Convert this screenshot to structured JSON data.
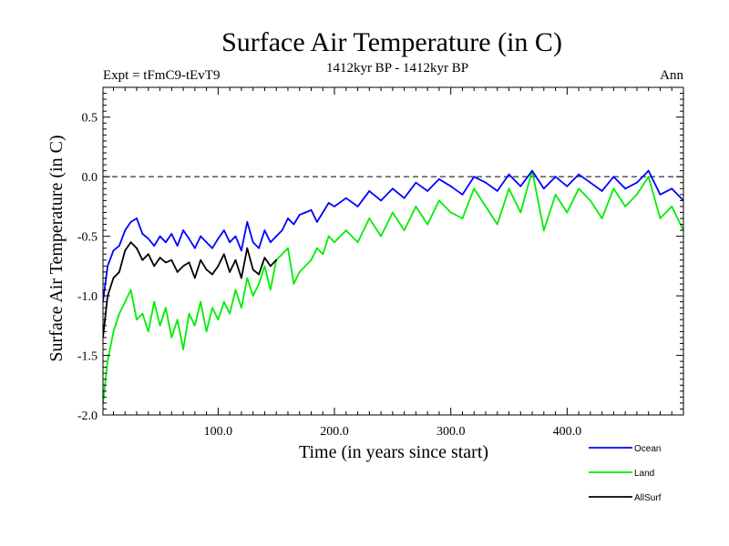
{
  "chart_data": {
    "type": "line",
    "title": "Surface Air Temperature (in C)",
    "subtitle": "1412kyr BP - 1412kyr BP",
    "expt_label": "Expt = tFmC9-tEvT9",
    "season_label": "Ann",
    "xlabel": "Time (in years since start)",
    "ylabel": "Surface Air Temperature (in C)",
    "xlim": [
      1,
      500
    ],
    "ylim": [
      -2.0,
      0.75
    ],
    "x_ticks": [
      100,
      200,
      300,
      400
    ],
    "x_tick_labels": [
      "100.0",
      "200.0",
      "300.0",
      "400.0"
    ],
    "y_ticks": [
      -2.0,
      -1.5,
      -1.0,
      -0.5,
      0.0,
      0.5
    ],
    "y_tick_labels": [
      "-2.0",
      "-1.5",
      "-1.0",
      "-0.5",
      "0.0",
      "0.5"
    ],
    "reference_line": 0.0,
    "grid": false,
    "legend_position": "bottom-right",
    "series": [
      {
        "name": "Ocean",
        "color": "#0000ff",
        "x": [
          1,
          5,
          10,
          15,
          20,
          25,
          30,
          35,
          40,
          45,
          50,
          55,
          60,
          65,
          70,
          75,
          80,
          85,
          90,
          95,
          100,
          105,
          110,
          115,
          120,
          125,
          130,
          135,
          140,
          145,
          150,
          155,
          160,
          165,
          170,
          175,
          180,
          185,
          190,
          195,
          200,
          210,
          220,
          230,
          240,
          250,
          260,
          270,
          280,
          290,
          300,
          310,
          320,
          330,
          340,
          350,
          360,
          370,
          380,
          390,
          400,
          410,
          420,
          430,
          440,
          450,
          460,
          470,
          480,
          490,
          500
        ],
        "values": [
          -1.05,
          -0.75,
          -0.62,
          -0.58,
          -0.45,
          -0.38,
          -0.35,
          -0.48,
          -0.52,
          -0.58,
          -0.5,
          -0.55,
          -0.48,
          -0.58,
          -0.45,
          -0.52,
          -0.6,
          -0.5,
          -0.55,
          -0.6,
          -0.52,
          -0.45,
          -0.55,
          -0.5,
          -0.62,
          -0.38,
          -0.55,
          -0.6,
          -0.45,
          -0.55,
          -0.5,
          -0.45,
          -0.35,
          -0.4,
          -0.32,
          -0.3,
          -0.28,
          -0.38,
          -0.3,
          -0.22,
          -0.25,
          -0.18,
          -0.25,
          -0.12,
          -0.2,
          -0.1,
          -0.18,
          -0.05,
          -0.12,
          -0.02,
          -0.08,
          -0.15,
          0.0,
          -0.05,
          -0.12,
          0.02,
          -0.08,
          0.05,
          -0.1,
          0.0,
          -0.08,
          0.02,
          -0.05,
          -0.12,
          0.0,
          -0.1,
          -0.05,
          0.05,
          -0.15,
          -0.1,
          -0.2
        ]
      },
      {
        "name": "Land",
        "color": "#00ee00",
        "x": [
          1,
          5,
          10,
          15,
          20,
          25,
          30,
          35,
          40,
          45,
          50,
          55,
          60,
          65,
          70,
          75,
          80,
          85,
          90,
          95,
          100,
          105,
          110,
          115,
          120,
          125,
          130,
          135,
          140,
          145,
          150,
          155,
          160,
          165,
          170,
          175,
          180,
          185,
          190,
          195,
          200,
          210,
          220,
          230,
          240,
          250,
          260,
          270,
          280,
          290,
          300,
          310,
          320,
          330,
          340,
          350,
          360,
          370,
          380,
          390,
          400,
          410,
          420,
          430,
          440,
          450,
          460,
          470,
          480,
          490,
          500
        ],
        "values": [
          -1.9,
          -1.55,
          -1.3,
          -1.15,
          -1.05,
          -0.95,
          -1.2,
          -1.15,
          -1.3,
          -1.05,
          -1.25,
          -1.1,
          -1.35,
          -1.2,
          -1.45,
          -1.15,
          -1.25,
          -1.05,
          -1.3,
          -1.1,
          -1.2,
          -1.05,
          -1.15,
          -0.95,
          -1.1,
          -0.85,
          -1.0,
          -0.9,
          -0.75,
          -0.95,
          -0.7,
          -0.65,
          -0.6,
          -0.9,
          -0.8,
          -0.75,
          -0.7,
          -0.6,
          -0.65,
          -0.5,
          -0.55,
          -0.45,
          -0.55,
          -0.35,
          -0.5,
          -0.3,
          -0.45,
          -0.25,
          -0.4,
          -0.2,
          -0.3,
          -0.35,
          -0.1,
          -0.25,
          -0.4,
          -0.1,
          -0.3,
          0.05,
          -0.45,
          -0.15,
          -0.3,
          -0.1,
          -0.2,
          -0.35,
          -0.1,
          -0.25,
          -0.15,
          0.0,
          -0.35,
          -0.25,
          -0.45
        ]
      },
      {
        "name": "AllSurf",
        "color": "#000000",
        "x": [
          1,
          5,
          10,
          15,
          20,
          25,
          30,
          35,
          40,
          45,
          50,
          55,
          60,
          65,
          70,
          75,
          80,
          85,
          90,
          95,
          100,
          105,
          110,
          115,
          120,
          125,
          130,
          135,
          140,
          145,
          150
        ],
        "values": [
          -1.35,
          -1.0,
          -0.85,
          -0.8,
          -0.62,
          -0.55,
          -0.6,
          -0.7,
          -0.65,
          -0.75,
          -0.68,
          -0.72,
          -0.7,
          -0.8,
          -0.75,
          -0.72,
          -0.85,
          -0.7,
          -0.78,
          -0.82,
          -0.75,
          -0.65,
          -0.8,
          -0.7,
          -0.85,
          -0.6,
          -0.78,
          -0.82,
          -0.68,
          -0.75,
          -0.7
        ]
      }
    ]
  }
}
